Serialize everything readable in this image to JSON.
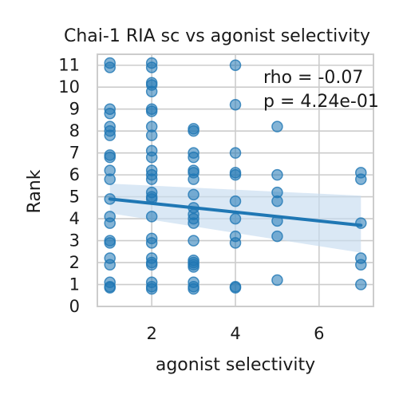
{
  "chart_data": {
    "type": "scatter",
    "title": "Chai-1 RIA sc vs agonist selectivity",
    "xlabel": "agonist selectivity",
    "ylabel": "Rank",
    "xlim": [
      0.7,
      7.3
    ],
    "ylim": [
      0,
      11.5
    ],
    "xticks": [
      2,
      4,
      6
    ],
    "yticks": [
      0,
      1,
      2,
      3,
      4,
      5,
      6,
      7,
      8,
      9,
      10,
      11
    ],
    "grid": true,
    "annotations": [
      "rho = -0.07",
      "p = 4.24e-01"
    ],
    "marker_color": "#1f77b4",
    "line_color": "#1f77b4",
    "band_color": "#c6dbef",
    "points": [
      {
        "x": 1,
        "y": 11.1
      },
      {
        "x": 1,
        "y": 10.9
      },
      {
        "x": 1,
        "y": 9.0
      },
      {
        "x": 1,
        "y": 8.8
      },
      {
        "x": 1,
        "y": 8.2
      },
      {
        "x": 1,
        "y": 8.0
      },
      {
        "x": 1,
        "y": 7.8
      },
      {
        "x": 1,
        "y": 6.9
      },
      {
        "x": 1,
        "y": 6.8
      },
      {
        "x": 1,
        "y": 6.2
      },
      {
        "x": 1,
        "y": 5.8
      },
      {
        "x": 1,
        "y": 4.9
      },
      {
        "x": 1,
        "y": 4.1
      },
      {
        "x": 1,
        "y": 3.8
      },
      {
        "x": 1,
        "y": 3.0
      },
      {
        "x": 1,
        "y": 2.9
      },
      {
        "x": 1,
        "y": 2.2
      },
      {
        "x": 1,
        "y": 1.9
      },
      {
        "x": 1,
        "y": 1.1
      },
      {
        "x": 1,
        "y": 0.9
      },
      {
        "x": 1,
        "y": 0.85
      },
      {
        "x": 2,
        "y": 11.1
      },
      {
        "x": 2,
        "y": 10.9
      },
      {
        "x": 2,
        "y": 10.2
      },
      {
        "x": 2,
        "y": 10.1
      },
      {
        "x": 2,
        "y": 9.8
      },
      {
        "x": 2,
        "y": 9.0
      },
      {
        "x": 2,
        "y": 8.9
      },
      {
        "x": 2,
        "y": 8.2
      },
      {
        "x": 2,
        "y": 7.8
      },
      {
        "x": 2,
        "y": 7.1
      },
      {
        "x": 2,
        "y": 6.8
      },
      {
        "x": 2,
        "y": 6.2
      },
      {
        "x": 2,
        "y": 6.0
      },
      {
        "x": 2,
        "y": 5.8
      },
      {
        "x": 2,
        "y": 5.2
      },
      {
        "x": 2,
        "y": 5.0
      },
      {
        "x": 2,
        "y": 4.9
      },
      {
        "x": 2,
        "y": 4.1
      },
      {
        "x": 2,
        "y": 3.1
      },
      {
        "x": 2,
        "y": 2.9
      },
      {
        "x": 2,
        "y": 2.2
      },
      {
        "x": 2,
        "y": 2.0
      },
      {
        "x": 2,
        "y": 1.9
      },
      {
        "x": 2,
        "y": 1.1
      },
      {
        "x": 2,
        "y": 0.9
      },
      {
        "x": 2,
        "y": 0.8
      },
      {
        "x": 3,
        "y": 8.1
      },
      {
        "x": 3,
        "y": 8.0
      },
      {
        "x": 3,
        "y": 7.0
      },
      {
        "x": 3,
        "y": 6.8
      },
      {
        "x": 3,
        "y": 6.2
      },
      {
        "x": 3,
        "y": 6.1
      },
      {
        "x": 3,
        "y": 5.8
      },
      {
        "x": 3,
        "y": 5.1
      },
      {
        "x": 3,
        "y": 4.5
      },
      {
        "x": 3,
        "y": 4.2
      },
      {
        "x": 3,
        "y": 4.0
      },
      {
        "x": 3,
        "y": 3.8
      },
      {
        "x": 3,
        "y": 3.0
      },
      {
        "x": 3,
        "y": 2.1
      },
      {
        "x": 3,
        "y": 2.0
      },
      {
        "x": 3,
        "y": 1.9
      },
      {
        "x": 3,
        "y": 1.8
      },
      {
        "x": 3,
        "y": 1.1
      },
      {
        "x": 3,
        "y": 0.9
      },
      {
        "x": 3,
        "y": 0.8
      },
      {
        "x": 4,
        "y": 11.0
      },
      {
        "x": 4,
        "y": 9.2
      },
      {
        "x": 4,
        "y": 7.0
      },
      {
        "x": 4,
        "y": 6.1
      },
      {
        "x": 4,
        "y": 6.0
      },
      {
        "x": 4,
        "y": 4.8
      },
      {
        "x": 4,
        "y": 4.0
      },
      {
        "x": 4,
        "y": 3.2
      },
      {
        "x": 4,
        "y": 2.9
      },
      {
        "x": 4,
        "y": 0.9
      },
      {
        "x": 4,
        "y": 0.85
      },
      {
        "x": 5,
        "y": 8.2
      },
      {
        "x": 5,
        "y": 6.0
      },
      {
        "x": 5,
        "y": 5.2
      },
      {
        "x": 5,
        "y": 4.8
      },
      {
        "x": 5,
        "y": 3.9
      },
      {
        "x": 5,
        "y": 3.2
      },
      {
        "x": 5,
        "y": 1.2
      },
      {
        "x": 7,
        "y": 6.1
      },
      {
        "x": 7,
        "y": 5.8
      },
      {
        "x": 7,
        "y": 3.8
      },
      {
        "x": 7,
        "y": 2.2
      },
      {
        "x": 7,
        "y": 1.9
      },
      {
        "x": 7,
        "y": 1.0
      }
    ],
    "regression": {
      "x": [
        1,
        7
      ],
      "y": [
        4.9,
        3.7
      ]
    },
    "ci_band": {
      "x": [
        1,
        7
      ],
      "lower": [
        4.25,
        2.45
      ],
      "upper": [
        5.6,
        5.05
      ]
    }
  }
}
